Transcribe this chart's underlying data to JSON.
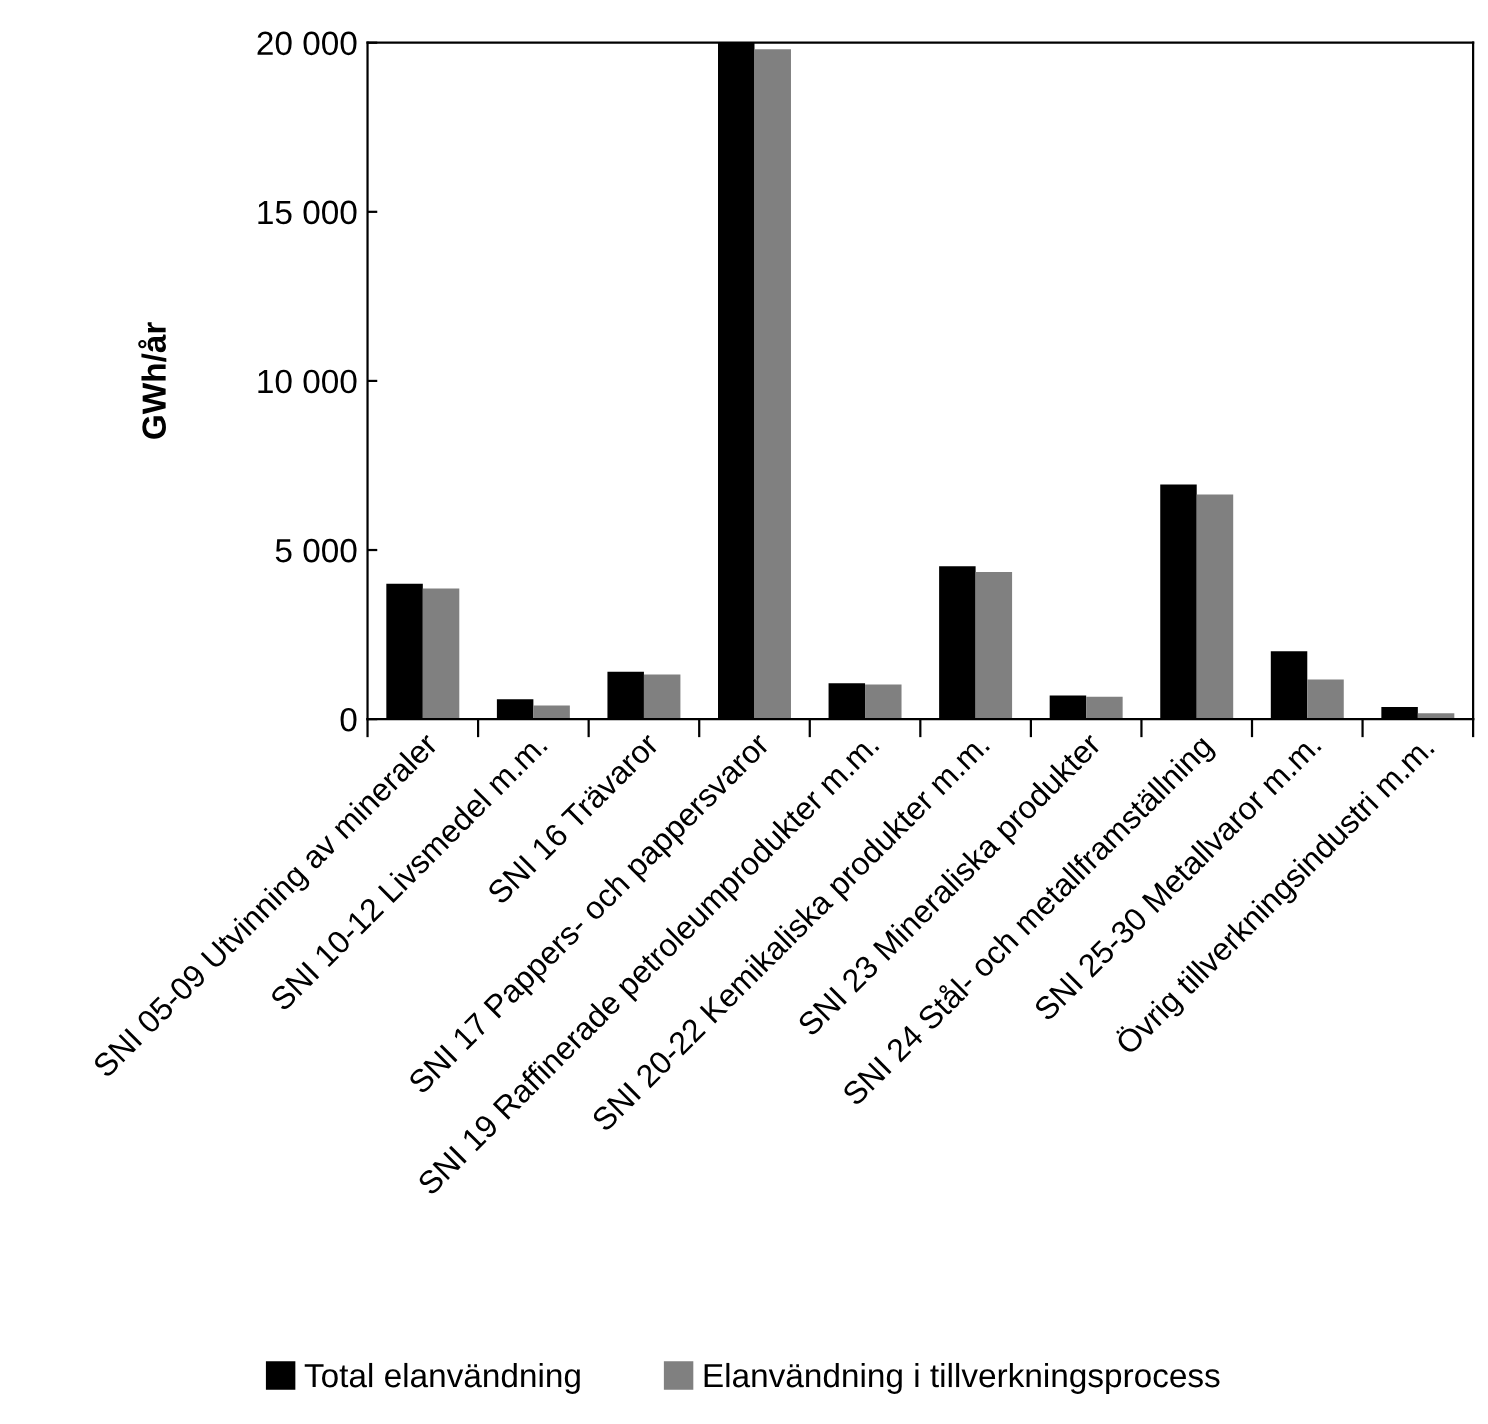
{
  "chart_data": {
    "type": "bar",
    "ylabel": "GWh/år",
    "categories": [
      "SNI 05-09 Utvinning av mineraler",
      "SNI 10-12 Livsmedel m.m.",
      "SNI 16 Trävaror",
      "SNI 17 Pappers- och pappersvaror",
      "SNI 19 Raffinerade petroleumprodukter m.m.",
      "SNI 20-22 Kemikaliska produkter m.m.",
      "SNI 23 Mineraliska produkter",
      "SNI 24 Stål- och metallframställning",
      "SNI 25-30 Metallvaror m.m.",
      "Övrig tillverkningsindustri m.m."
    ],
    "series": [
      {
        "name": "Total elanvändning",
        "color": "#000000",
        "values": [
          4000,
          590,
          1400,
          20000,
          1060,
          4520,
          700,
          6940,
          2010,
          360
        ]
      },
      {
        "name": "Elanvändning i tillverkningsprocess",
        "color": "#808080",
        "values": [
          3860,
          400,
          1320,
          19810,
          1020,
          4350,
          660,
          6640,
          1170,
          170
        ]
      }
    ],
    "ylim": [
      0,
      20000
    ],
    "yticks": [
      {
        "value": 0,
        "label": "0"
      },
      {
        "value": 5000,
        "label": "5 000"
      },
      {
        "value": 10000,
        "label": "10 000"
      },
      {
        "value": 15000,
        "label": "15 000"
      },
      {
        "value": 20000,
        "label": "20 000"
      }
    ],
    "grid": false,
    "legend": "bottom"
  }
}
